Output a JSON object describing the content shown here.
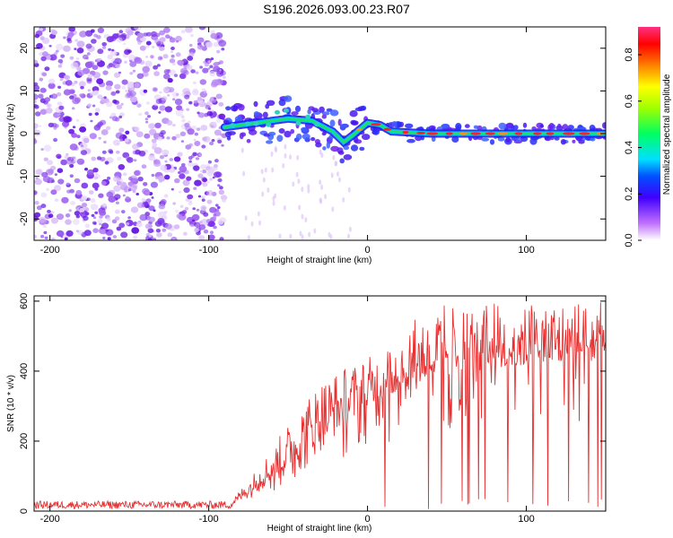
{
  "title": "S196.2026.093.00.23.R07",
  "chart_data": [
    {
      "type": "heatmap",
      "xlabel": "Height of straight line (km)",
      "ylabel": "Frequency (Hz)",
      "xlim": [
        -210,
        150
      ],
      "ylim": [
        -25,
        25
      ],
      "xticks": [
        -200,
        -100,
        0,
        100
      ],
      "yticks": [
        -20,
        -10,
        0,
        10,
        20
      ],
      "xtick_labels": [
        "-200",
        "-100",
        "0",
        "100"
      ],
      "ytick_labels": [
        "-20",
        "-10",
        "0",
        "10",
        "20"
      ],
      "description_series": {
        "noise_region_x": [
          -210,
          -90
        ],
        "ridge_points": [
          {
            "x": -90,
            "y": 1.5
          },
          {
            "x": -70,
            "y": 2.5
          },
          {
            "x": -50,
            "y": 3.5
          },
          {
            "x": -35,
            "y": 3
          },
          {
            "x": -22,
            "y": 0.5
          },
          {
            "x": -15,
            "y": -2
          },
          {
            "x": -8,
            "y": 0
          },
          {
            "x": 0,
            "y": 2.5
          },
          {
            "x": 8,
            "y": 2
          },
          {
            "x": 15,
            "y": 0.5
          },
          {
            "x": 40,
            "y": 0
          },
          {
            "x": 80,
            "y": 0
          },
          {
            "x": 110,
            "y": 0
          },
          {
            "x": 150,
            "y": 0
          }
        ]
      }
    },
    {
      "type": "colorbar",
      "label": "Normalized spectral amplitude",
      "range": [
        0,
        0.92
      ],
      "ticks": [
        0.0,
        0.2,
        0.4,
        0.6,
        0.8
      ],
      "tick_labels": [
        "0.0",
        "0.2",
        "0.4",
        "0.6",
        "0.8"
      ]
    },
    {
      "type": "line",
      "xlabel": "Height of straight line (km)",
      "ylabel": "SNR (10 * v/v)",
      "xlim": [
        -210,
        150
      ],
      "ylim": [
        0,
        615
      ],
      "xticks": [
        -200,
        -100,
        0,
        100
      ],
      "yticks": [
        0,
        200,
        400,
        600
      ],
      "xtick_labels": [
        "-200",
        "-100",
        "0",
        "100"
      ],
      "ytick_labels": [
        "0",
        "200",
        "400",
        "600"
      ],
      "series": [
        {
          "name": "SNR",
          "color": "#e83030",
          "baseline": [
            {
              "x": -210,
              "y": 18
            },
            {
              "x": -85,
              "y": 18
            },
            {
              "x": -75,
              "y": 45
            },
            {
              "x": -60,
              "y": 90
            },
            {
              "x": -40,
              "y": 150
            },
            {
              "x": -20,
              "y": 230
            },
            {
              "x": 0,
              "y": 290
            },
            {
              "x": 20,
              "y": 340
            },
            {
              "x": 40,
              "y": 375
            },
            {
              "x": 60,
              "y": 390
            },
            {
              "x": 100,
              "y": 410
            },
            {
              "x": 150,
              "y": 420
            }
          ],
          "peak_envelope": [
            {
              "x": -210,
              "y": 35
            },
            {
              "x": -85,
              "y": 35
            },
            {
              "x": -70,
              "y": 120
            },
            {
              "x": -50,
              "y": 250
            },
            {
              "x": -30,
              "y": 380
            },
            {
              "x": -10,
              "y": 420
            },
            {
              "x": 10,
              "y": 460
            },
            {
              "x": 20,
              "y": 530
            },
            {
              "x": 40,
              "y": 590
            },
            {
              "x": 80,
              "y": 600
            },
            {
              "x": 150,
              "y": 610
            }
          ],
          "dropouts_start_x": 10
        }
      ]
    }
  ]
}
